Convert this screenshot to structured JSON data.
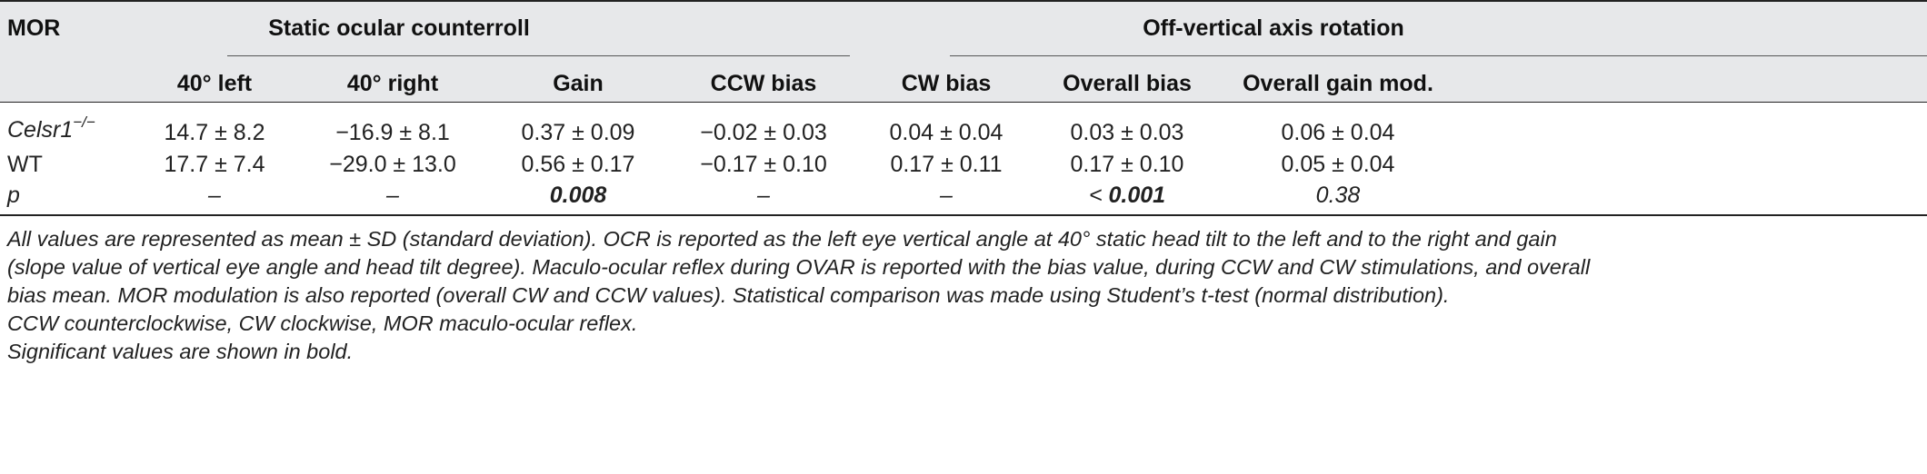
{
  "table": {
    "row_header_label": "MOR",
    "groups": [
      {
        "label": "Static ocular counterroll"
      },
      {
        "label": "Off-vertical axis rotation"
      }
    ],
    "columns": [
      "40° left",
      "40° right",
      "Gain",
      "CCW bias",
      "CW bias",
      "Overall bias",
      "Overall gain mod."
    ],
    "rows": [
      {
        "label_main": "Celsr1",
        "label_sup": "−/−",
        "cells": [
          "14.7 ± 8.2",
          "−16.9 ± 8.1",
          "0.37 ± 0.09",
          "−0.02 ± 0.03",
          "0.04 ± 0.04",
          "0.03 ± 0.03",
          "0.06 ± 0.04"
        ]
      },
      {
        "label_main": "WT",
        "label_sup": "",
        "cells": [
          "17.7 ± 7.4",
          "−29.0 ± 13.0",
          "0.56 ± 0.17",
          "−0.17 ± 0.10",
          "0.17 ± 0.11",
          "0.17 ± 0.10",
          "0.05 ± 0.04"
        ]
      },
      {
        "label_main": "p",
        "label_sup": "",
        "cells": [
          "–",
          "–",
          "0.008",
          "–",
          "–",
          "0.001",
          "0.38"
        ],
        "overall_bias_prefix": "< "
      }
    ]
  },
  "footnotes": {
    "line1": "All values are represented as mean ± SD (standard deviation). OCR is reported as the left eye vertical angle at 40° static head tilt to the left and to the right and gain",
    "line2": "(slope value of vertical eye angle and head tilt degree). Maculo-ocular reflex during OVAR is reported with the bias value, during CCW and CW stimulations, and overall",
    "line3": "bias mean. MOR modulation is also reported (overall CW and CCW values). Statistical comparison was made using Student’s t-test (normal distribution).",
    "line4": "CCW counterclockwise, CW clockwise, MOR maculo-ocular reflex.",
    "line5": "Significant values are shown in bold."
  }
}
